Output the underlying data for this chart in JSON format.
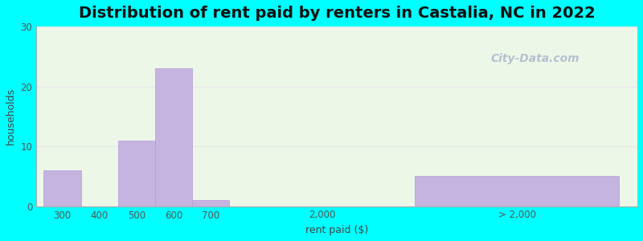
{
  "title": "Distribution of rent paid by renters in Castalia, NC in 2022",
  "xlabel": "rent paid ($)",
  "ylabel": "households",
  "background_color": "#00FFFF",
  "bar_color": "#c5b3e0",
  "bar_edge_color": "#b39ddb",
  "ylim": [
    0,
    30
  ],
  "yticks": [
    0,
    10,
    20,
    30
  ],
  "title_fontsize": 14,
  "axis_label_fontsize": 9,
  "tick_fontsize": 8.5,
  "watermark": "City-Data.com",
  "values": [
    6,
    0,
    11,
    23,
    1,
    0,
    5
  ],
  "bar_lefts": [
    0.0,
    1.0,
    2.0,
    3.0,
    4.0,
    7.0,
    10.0
  ],
  "bar_widths": [
    1.0,
    1.0,
    1.0,
    1.0,
    1.0,
    1.0,
    5.5
  ],
  "xtick_positions": [
    0.5,
    1.5,
    2.5,
    3.5,
    4.5,
    7.5,
    12.75
  ],
  "xtick_labels": [
    "300",
    "400",
    "500",
    "600",
    "700",
    "2,000",
    "> 2,000"
  ],
  "xlim": [
    -0.2,
    16.0
  ],
  "grid_color": "#e8e8e8",
  "plot_bg": "#edf7e8"
}
